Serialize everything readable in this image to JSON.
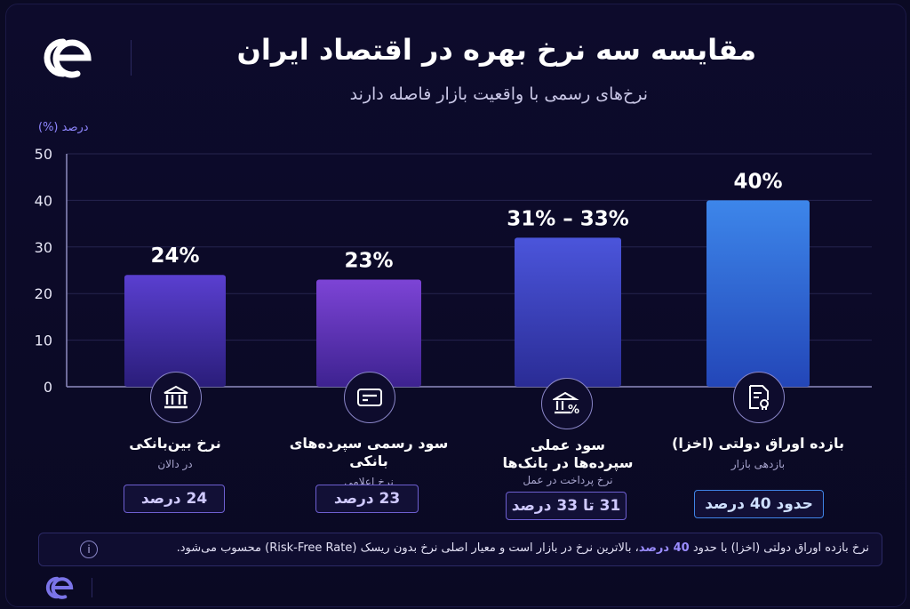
{
  "header": {
    "title": "مقایسه سه نرخ بهره در اقتصاد ایران",
    "subtitle": "نرخ‌های رسمی با واقعیت بازار فاصله دارند"
  },
  "chart_data": {
    "type": "bar",
    "ylabel": "درصد (%)",
    "ylim": [
      0,
      50
    ],
    "yticks": [
      0,
      10,
      20,
      30,
      40,
      50
    ],
    "grid": true,
    "categories": [
      "نرخ بین‌بانکی",
      "سود رسمی سپرده‌های بانکی",
      "سود عملی سپرده‌ها در بانک‌ها",
      "بازده اوراق دولتی (اخزا)"
    ],
    "values": [
      24,
      23,
      32,
      40
    ],
    "value_labels": [
      "24%",
      "23%",
      "31% – 33%",
      "40%"
    ],
    "bar_colors": [
      [
        "#5a3fd0",
        "#2a1d7a"
      ],
      [
        "#7d44d6",
        "#3d2290"
      ],
      [
        "#4b55db",
        "#2a2c95"
      ],
      [
        "#3d86ea",
        "#2346b8"
      ]
    ]
  },
  "categories_detail": [
    {
      "name": "نرخ بین‌بانکی",
      "sub": "در دالان",
      "pill": "24 درصد",
      "icon": "bank-icon"
    },
    {
      "name": "سود رسمی سپرده‌های بانکی",
      "sub": "نرخ اعلامی",
      "pill": "23 درصد",
      "icon": "card-icon"
    },
    {
      "name": "سود عملی سپرده‌ها در بانک‌ها",
      "sub": "نرخ پرداخت در عمل",
      "pill": "31 تا 33 درصد",
      "icon": "bank-percent-icon"
    },
    {
      "name": "بازده اوراق دولتی (اخزا)",
      "sub": "بازدهی بازار",
      "pill": "حدود 40 درصد",
      "icon": "certificate-icon"
    }
  ],
  "note": {
    "before": "نرخ بازده اوراق دولتی (اخزا) با حدود",
    "highlight": "40 درصد",
    "after": "، بالاترین نرخ در بازار است و معیار اصلی نرخ بدون ریسک (Risk-Free Rate) محسوب می‌شود.",
    "icon": "info-icon"
  },
  "colors": {
    "accent": "#8f86ff",
    "background": "#0b0a24"
  }
}
